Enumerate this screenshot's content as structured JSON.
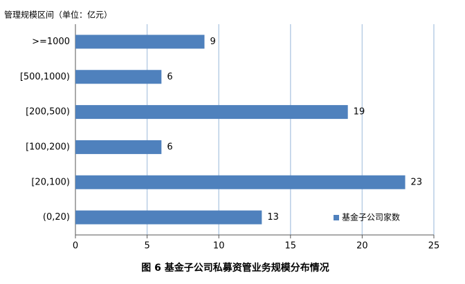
{
  "chart_data": {
    "type": "bar",
    "orientation": "horizontal",
    "title": "图 6   基金子公司私募资管业务规模分布情况",
    "y_axis_label": "管理规模区间（单位：亿元）",
    "categories": [
      ">=1000",
      "[500,1000)",
      "[200,500)",
      "[100,200)",
      "[20,100)",
      "(0,20)"
    ],
    "series": [
      {
        "name": "基金子公司家数",
        "color": "#4f81bd",
        "values": [
          9,
          6,
          19,
          6,
          23,
          13
        ]
      }
    ],
    "xlim": [
      0,
      25
    ],
    "xticks": [
      0,
      5,
      10,
      15,
      20,
      25
    ],
    "grid": true,
    "legend": "lower right"
  }
}
